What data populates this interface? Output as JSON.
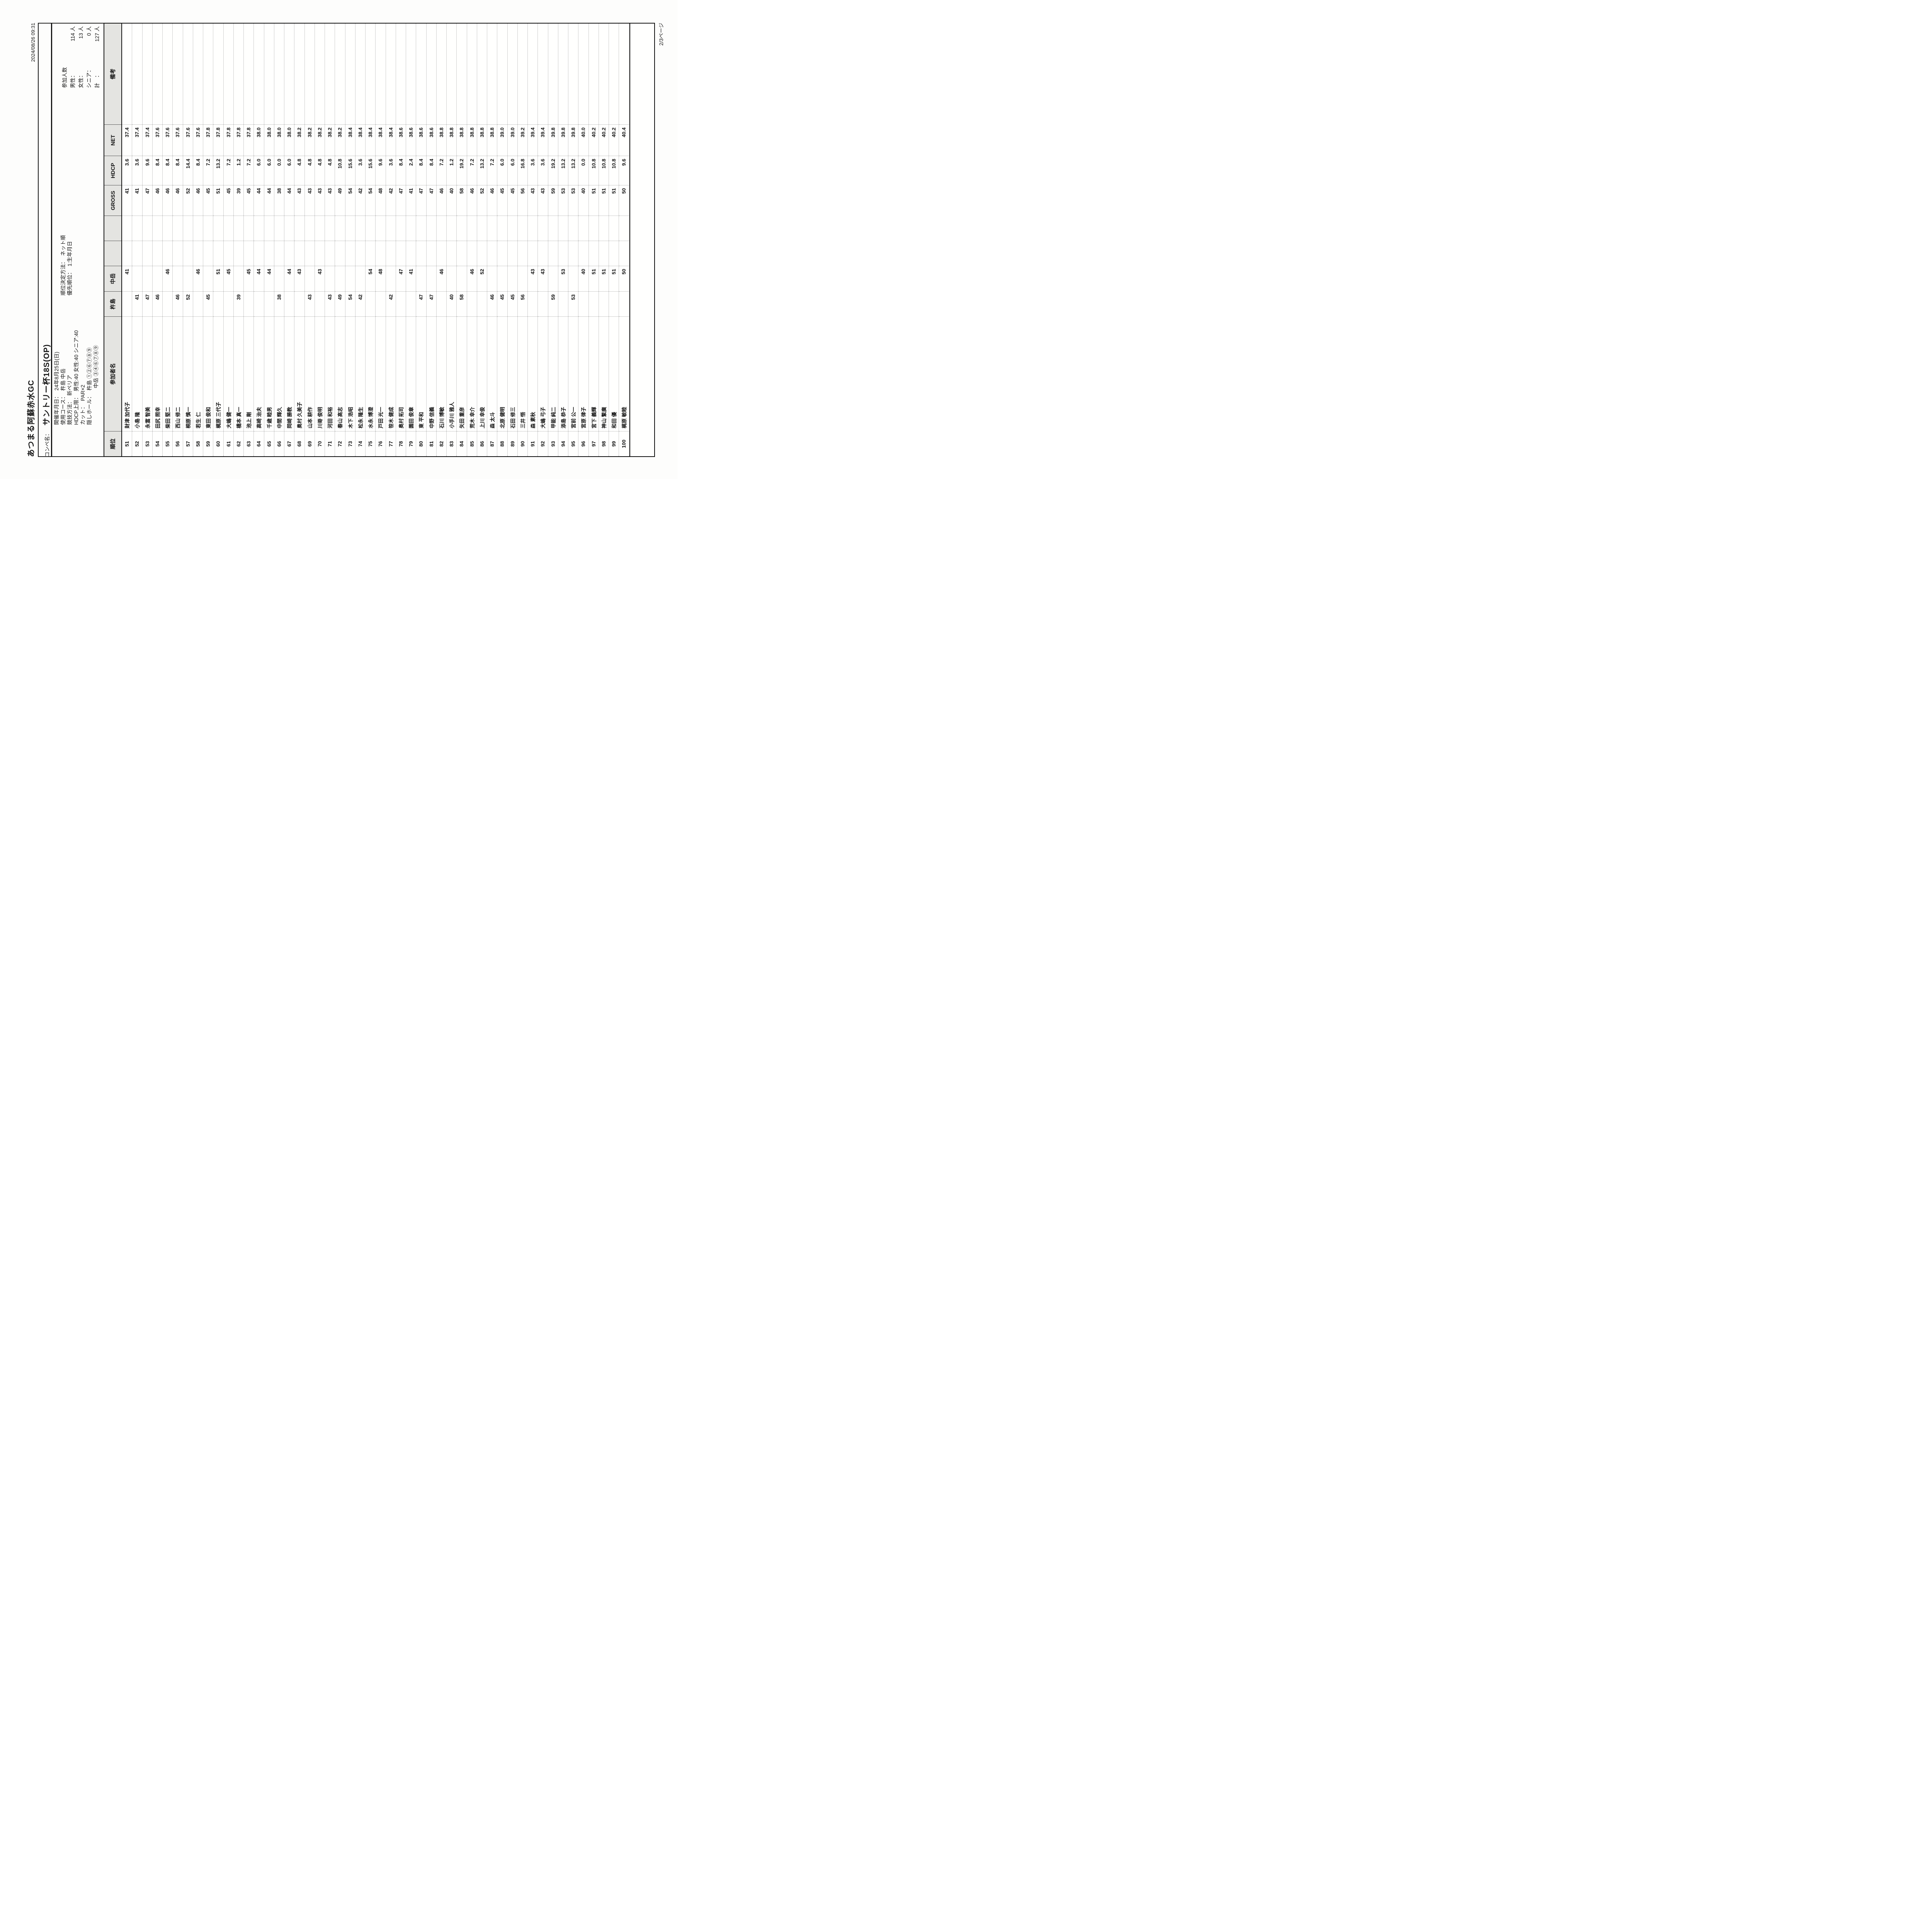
{
  "page": {
    "club_name": "あつまる阿蘇赤水GC",
    "printed_at": "2024/08/26 09:31",
    "page_indicator": "2/3ページ"
  },
  "competition": {
    "name_label": "コンペ名：",
    "name": "サントリー杯18S(OP)",
    "info": [
      {
        "label": "開催年月日：",
        "value": "24年8月25日(日)"
      },
      {
        "label": "使用コース：",
        "value": "杵島 中岳",
        "label2": "順位決定方法：",
        "value2": "ネット順"
      },
      {
        "label": "競技方法：",
        "value": "新ペリア",
        "label2": "優先順位：",
        "value2": "1:生年月日"
      },
      {
        "label": "HDCP上限：",
        "value": "男性:40 女性:40 シニア:40"
      },
      {
        "label": "カット：",
        "value": "PAR×2"
      },
      {
        "label": "隠しホール：",
        "value": "杵島 ①②⑥⑦⑧⑨"
      },
      {
        "label": "",
        "value": "中岳 ③④⑥⑦⑧⑨"
      }
    ]
  },
  "participants_summary": {
    "title": "参加人数",
    "rows": [
      {
        "label": "男性：",
        "value": "114 人"
      },
      {
        "label": "女性：",
        "value": "13 人"
      },
      {
        "label": "シニア：",
        "value": "0 人"
      },
      {
        "label": "計　：",
        "value": "127 人"
      }
    ]
  },
  "table": {
    "columns": [
      "順位",
      "参加者名",
      "杵島",
      "中岳",
      "",
      "",
      "GROSS",
      "HDCP",
      "NET",
      "備考"
    ],
    "rows": [
      [
        "51",
        "財津 加代子",
        "",
        "41",
        "41",
        "3.6",
        "37.4"
      ],
      [
        "52",
        "小島 隆",
        "41",
        "",
        "41",
        "3.6",
        "37.4"
      ],
      [
        "53",
        "永富 智美",
        "47",
        "",
        "47",
        "9.6",
        "37.4"
      ],
      [
        "54",
        "田尻 照幸",
        "46",
        "",
        "46",
        "8.4",
        "37.6"
      ],
      [
        "55",
        "柴田 堅二",
        "",
        "46",
        "46",
        "8.4",
        "37.6"
      ],
      [
        "56",
        "西山 修二",
        "46",
        "",
        "46",
        "8.4",
        "37.6"
      ],
      [
        "57",
        "桐原 慎一",
        "52",
        "",
        "52",
        "14.4",
        "37.6"
      ],
      [
        "58",
        "若生 仁",
        "",
        "46",
        "46",
        "8.4",
        "37.6"
      ],
      [
        "59",
        "東田 俊和",
        "45",
        "",
        "45",
        "7.2",
        "37.8"
      ],
      [
        "60",
        "梶原 三代子",
        "",
        "51",
        "51",
        "13.2",
        "37.8"
      ],
      [
        "61",
        "大嶋 健一",
        "",
        "45",
        "45",
        "7.2",
        "37.8"
      ],
      [
        "62",
        "橋本 真一",
        "39",
        "",
        "39",
        "1.2",
        "37.8"
      ],
      [
        "63",
        "池上 剛",
        "",
        "45",
        "45",
        "7.2",
        "37.8"
      ],
      [
        "64",
        "高崎 治夫",
        "",
        "44",
        "44",
        "6.0",
        "38.0"
      ],
      [
        "65",
        "千歳 睦男",
        "",
        "44",
        "44",
        "6.0",
        "38.0"
      ],
      [
        "66",
        "中間 輝久",
        "38",
        "",
        "38",
        "0.0",
        "38.0"
      ],
      [
        "67",
        "岡崎 勝教",
        "",
        "44",
        "44",
        "6.0",
        "38.0"
      ],
      [
        "68",
        "奥村 久美子",
        "",
        "43",
        "43",
        "4.8",
        "38.2"
      ],
      [
        "69",
        "山本 耕作",
        "43",
        "",
        "43",
        "4.8",
        "38.2"
      ],
      [
        "70",
        "川嵜 俊明",
        "",
        "43",
        "43",
        "4.8",
        "38.2"
      ],
      [
        "71",
        "河田 和裕",
        "43",
        "",
        "43",
        "4.8",
        "38.2"
      ],
      [
        "72",
        "春山 高志",
        "49",
        "",
        "49",
        "10.8",
        "38.2"
      ],
      [
        "73",
        "木下 浩昭",
        "54",
        "",
        "54",
        "15.6",
        "38.4"
      ],
      [
        "74",
        "松永 隆生",
        "42",
        "",
        "42",
        "3.6",
        "38.4"
      ],
      [
        "75",
        "水永 博澄",
        "",
        "54",
        "54",
        "15.6",
        "38.4"
      ],
      [
        "76",
        "戸田 光一",
        "",
        "48",
        "48",
        "9.6",
        "38.4"
      ],
      [
        "77",
        "笹木 健成",
        "42",
        "",
        "42",
        "3.6",
        "38.4"
      ],
      [
        "78",
        "奥村 拓司",
        "",
        "47",
        "47",
        "8.4",
        "38.6"
      ],
      [
        "79",
        "園田 俊章",
        "",
        "41",
        "41",
        "2.4",
        "38.6"
      ],
      [
        "80",
        "東 平和",
        "47",
        "",
        "47",
        "8.4",
        "38.6"
      ],
      [
        "81",
        "中野 信義",
        "47",
        "",
        "47",
        "8.4",
        "38.6"
      ],
      [
        "82",
        "石川 博敏",
        "",
        "46",
        "46",
        "7.2",
        "38.8"
      ],
      [
        "83",
        "小手川 雅人",
        "40",
        "",
        "40",
        "1.2",
        "38.8"
      ],
      [
        "84",
        "矢田 重彦",
        "58",
        "",
        "58",
        "19.2",
        "38.8"
      ],
      [
        "85",
        "荒木 幸介",
        "",
        "46",
        "46",
        "7.2",
        "38.8"
      ],
      [
        "86",
        "上川 幸俊",
        "",
        "52",
        "52",
        "13.2",
        "38.8"
      ],
      [
        "87",
        "森 太斗",
        "46",
        "",
        "46",
        "7.2",
        "38.8"
      ],
      [
        "88",
        "北原 健明",
        "45",
        "",
        "45",
        "6.0",
        "39.0"
      ],
      [
        "89",
        "石田 修三",
        "45",
        "",
        "45",
        "6.0",
        "39.0"
      ],
      [
        "90",
        "三井 悟",
        "56",
        "",
        "56",
        "16.8",
        "39.2"
      ],
      [
        "91",
        "森 素秋",
        "",
        "43",
        "43",
        "3.6",
        "39.4"
      ],
      [
        "92",
        "大嶋 弓子",
        "",
        "43",
        "43",
        "3.6",
        "39.4"
      ],
      [
        "93",
        "甲能 純二",
        "59",
        "",
        "59",
        "19.2",
        "39.8"
      ],
      [
        "94",
        "添島 恭子",
        "",
        "53",
        "53",
        "13.2",
        "39.8"
      ],
      [
        "95",
        "宮前 公一",
        "53",
        "",
        "53",
        "13.2",
        "39.8"
      ],
      [
        "96",
        "宮原 律子",
        "",
        "40",
        "40",
        "0.0",
        "40.0"
      ],
      [
        "97",
        "宮下 義輝",
        "",
        "51",
        "51",
        "10.8",
        "40.2"
      ],
      [
        "98",
        "神山 繁廣",
        "",
        "51",
        "51",
        "10.8",
        "40.2"
      ],
      [
        "99",
        "和田 優",
        "",
        "51",
        "51",
        "10.8",
        "40.2"
      ],
      [
        "100",
        "梶原 敏睦",
        "",
        "50",
        "50",
        "9.6",
        "40.4"
      ]
    ]
  }
}
